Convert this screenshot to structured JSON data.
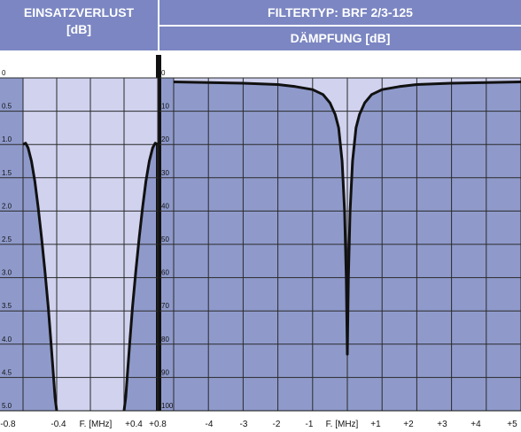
{
  "header": {
    "left_line1": "EINSATZVERLUST",
    "left_line2": "[dB]",
    "right_line1": "FILTERTYP: BRF 2/3-125",
    "right_line2": "DÄMPFUNG [dB]"
  },
  "colors": {
    "header_bg": "#7b86c2",
    "panel_bg": "#8f9acb",
    "fill_bg": "#a7acdd",
    "highlight_bg": "#d0d2ee",
    "grid": "#2a2a2a",
    "curve": "#111111"
  },
  "chart_data": [
    {
      "type": "line",
      "name": "insertion-loss",
      "xlabel": "F. [MHz]",
      "ylabel": "",
      "xlim": [
        -0.8,
        0.8
      ],
      "ylim": [
        0,
        5.0
      ],
      "y_inverted": true,
      "x_ticks": [
        "-0.8",
        "-0.4",
        "+0.4",
        "+0.8"
      ],
      "y_ticks": [
        "0",
        "0.5",
        "1.0",
        "1.5",
        "2.0",
        "2.5",
        "3.0",
        "3.5",
        "4.0",
        "4.5",
        "5.0"
      ],
      "series": [
        {
          "x": [
            -0.8,
            -0.77,
            -0.74,
            -0.7,
            -0.66,
            -0.62,
            -0.58,
            -0.54,
            -0.5,
            -0.47,
            -0.44,
            -0.42,
            -0.4
          ],
          "y": [
            1.0,
            0.98,
            1.05,
            1.25,
            1.55,
            1.95,
            2.4,
            2.9,
            3.45,
            3.95,
            4.45,
            4.8,
            5.0
          ]
        },
        {
          "x": [
            0.4,
            0.42,
            0.44,
            0.47,
            0.5,
            0.54,
            0.58,
            0.62,
            0.66,
            0.7,
            0.74,
            0.77,
            0.8
          ],
          "y": [
            5.0,
            4.8,
            4.45,
            3.95,
            3.45,
            2.9,
            2.4,
            1.95,
            1.55,
            1.25,
            1.05,
            0.98,
            1.0
          ]
        }
      ]
    },
    {
      "type": "line",
      "name": "attenuation",
      "xlabel": "F. [MHz]",
      "ylabel": "",
      "xlim": [
        -5,
        5
      ],
      "ylim": [
        0,
        100
      ],
      "y_inverted": true,
      "x_ticks": [
        "-4",
        "-3",
        "-2",
        "-1",
        "+1",
        "+2",
        "+3",
        "+4",
        "+5"
      ],
      "y_ticks": [
        "0",
        "10",
        "20",
        "30",
        "40",
        "50",
        "60",
        "70",
        "80",
        "90",
        "100"
      ],
      "series": [
        {
          "x": [
            -5,
            -4,
            -3,
            -2,
            -1.5,
            -1,
            -0.7,
            -0.5,
            -0.35,
            -0.25,
            -0.15,
            -0.08,
            -0.03,
            0,
            0.03,
            0.08,
            0.15,
            0.25,
            0.35,
            0.5,
            0.7,
            1,
            1.5,
            2,
            3,
            4,
            5
          ],
          "y": [
            1.2,
            1.4,
            1.6,
            2.0,
            2.6,
            3.5,
            5.0,
            7.5,
            11,
            15,
            25,
            40,
            60,
            83,
            60,
            40,
            25,
            15,
            11,
            7.5,
            5.0,
            3.5,
            2.6,
            2.0,
            1.6,
            1.4,
            1.2
          ]
        }
      ]
    }
  ]
}
